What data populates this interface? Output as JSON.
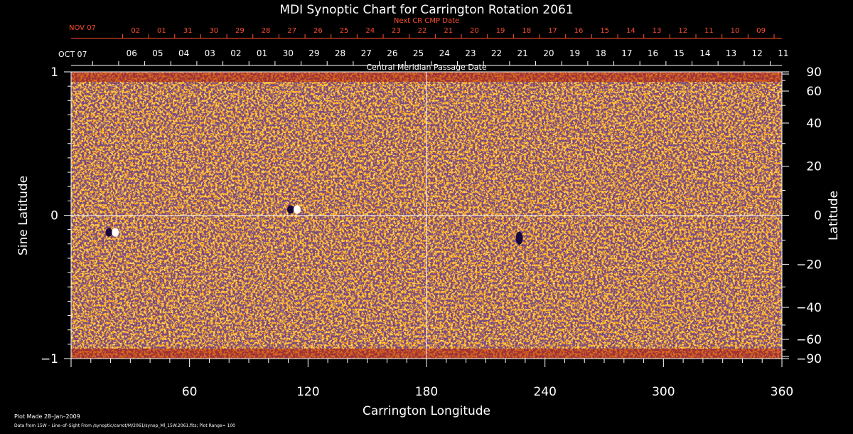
{
  "chart_data": {
    "type": "heatmap",
    "title": "MDI Synoptic Chart for Carrington Rotation 2061",
    "subtitle_top": "Next CR CMP Date",
    "subtitle_mid": "Central Meridian Passage Date",
    "xlabel": "Carrington Longitude",
    "ylabel_left": "Sine Latitude",
    "ylabel_right": "Latitude",
    "xlim": [
      0,
      360
    ],
    "ylim": [
      -1,
      1
    ],
    "x_ticks": [
      "60",
      "120",
      "180",
      "240",
      "300",
      "360"
    ],
    "y_ticks_left": [
      "1",
      "0",
      "−1"
    ],
    "y_ticks_right": [
      "90",
      "60",
      "40",
      "20",
      "0",
      "−20",
      "−40",
      "−60",
      "−90"
    ],
    "cmp_month_label": "OCT 07",
    "cmp_dates": [
      "06",
      "05",
      "04",
      "03",
      "02",
      "01",
      "30",
      "29",
      "28",
      "27",
      "26",
      "25",
      "24",
      "23",
      "22",
      "21",
      "20",
      "19",
      "18",
      "17",
      "16",
      "15",
      "14",
      "13",
      "12",
      "11"
    ],
    "next_cmp_month_label": "NOV 07",
    "next_cmp_dates": [
      "02",
      "01",
      "31",
      "30",
      "29",
      "28",
      "27",
      "26",
      "25",
      "24",
      "23",
      "22",
      "21",
      "20",
      "19",
      "18",
      "17",
      "16",
      "15",
      "14",
      "13",
      "12",
      "11",
      "10",
      "09"
    ],
    "features": [
      {
        "name": "bipolar-region-1",
        "lon": 113,
        "sinlat": 0.04
      },
      {
        "name": "bipolar-region-2",
        "lon": 21,
        "sinlat": -0.12
      },
      {
        "name": "negative-patch",
        "lon": 227,
        "sinlat": -0.16
      }
    ],
    "colors": {
      "background": "#000000",
      "field": "#ff4a0a",
      "positive": "#ffe070",
      "negative": "#1a0a3a",
      "annotation": "#ff4d2e"
    },
    "grid": false
  },
  "footer": {
    "plot_made": "Plot Made 28–Jan–2009",
    "data_source": "Data from 15W – Line–of–Sight From /synoptic/carrot/M/2061/synop_Ml_15W.2061.fits; Plot Range=  100"
  }
}
